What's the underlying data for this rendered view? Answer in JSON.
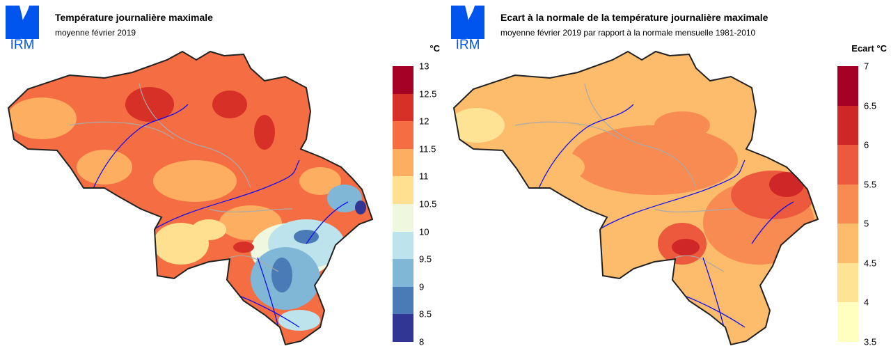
{
  "logo_text": "IRM",
  "maps": [
    {
      "title": "Température journalière maximale",
      "subtitle": "moyenne février 2019",
      "legend_unit": "°C",
      "legend_ticks": [
        "13",
        "12.5",
        "12",
        "11.5",
        "11",
        "10.5",
        "10",
        "9.5",
        "9",
        "8.5",
        "8"
      ],
      "legend_colors": [
        "#a50026",
        "#d73027",
        "#f46d43",
        "#fdae61",
        "#fee090",
        "#eff7df",
        "#bde3ec",
        "#80b6d6",
        "#4a7bb7",
        "#313695"
      ]
    },
    {
      "title": "Ecart à la normale de la température journalière maximale",
      "subtitle": "moyenne février 2019 par rapport à la normale mensuelle 1981-2010",
      "legend_unit": "Ecart  °C",
      "legend_ticks": [
        "7",
        "6.5",
        "6",
        "5.5",
        "5",
        "4.5",
        "4",
        "3.5"
      ],
      "legend_colors": [
        "#a50026",
        "#cf2628",
        "#ec593d",
        "#f88b51",
        "#fdbb6c",
        "#fee394",
        "#ffffc0"
      ]
    }
  ]
}
